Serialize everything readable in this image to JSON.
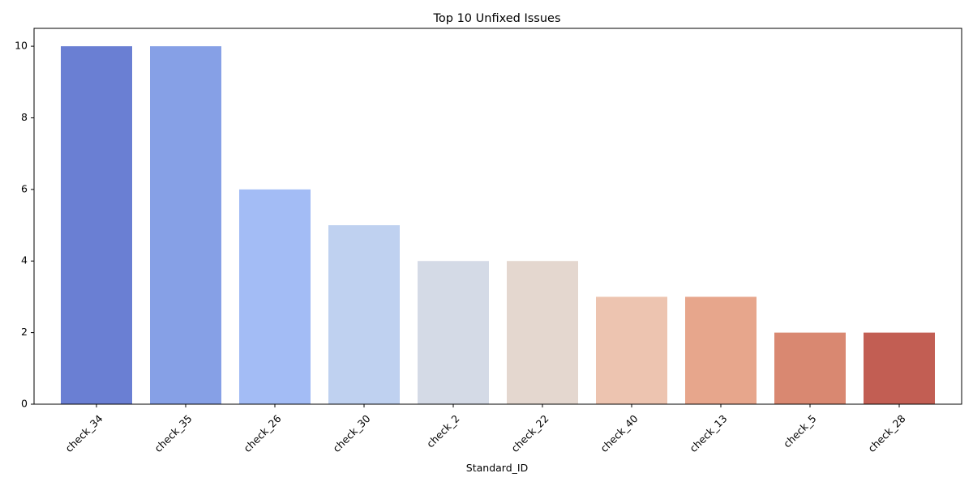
{
  "chart_data": {
    "type": "bar",
    "title": "Top 10 Unfixed Issues",
    "xlabel": "Standard_ID",
    "ylabel": "",
    "categories": [
      "check_34",
      "check_35",
      "check_26",
      "check_30",
      "check_2",
      "check_22",
      "check_40",
      "check_13",
      "check_5",
      "check_28"
    ],
    "values": [
      10,
      10,
      6,
      5,
      4,
      4,
      3,
      3,
      2,
      2
    ],
    "colors": [
      "#6a7fd3",
      "#86a0e6",
      "#a3bcf5",
      "#bfd1f0",
      "#d4dae6",
      "#e4d7cf",
      "#edc4b0",
      "#e7a68c",
      "#d98871",
      "#c25e53"
    ],
    "ylim": [
      0,
      10.5
    ],
    "yticks": [
      0,
      2,
      4,
      6,
      8,
      10
    ],
    "grid": false,
    "legend": "none"
  }
}
